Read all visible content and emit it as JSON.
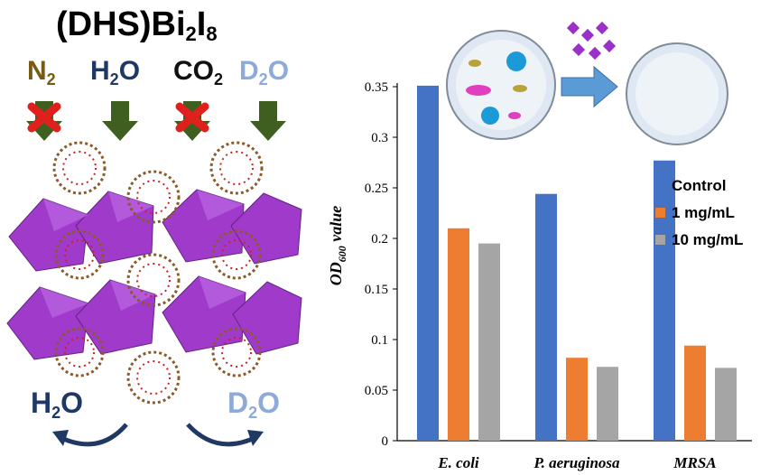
{
  "left_panel": {
    "title": {
      "prefix": "(DHS)Bi",
      "sub1": "2",
      "mid": "I",
      "sub2": "8"
    },
    "gases": [
      {
        "base": "N",
        "sub": "2",
        "color": "#7a5a12",
        "blocked": true
      },
      {
        "base": "H",
        "sub": "2",
        "tail": "O",
        "color": "#1f3864",
        "blocked": false
      },
      {
        "base": "CO",
        "sub": "2",
        "color": "#111111",
        "blocked": true
      },
      {
        "base": "D",
        "sub": "2",
        "tail": "O",
        "color": "#8eaadb",
        "blocked": false
      }
    ],
    "exchange": {
      "left": {
        "base": "H",
        "sub": "2",
        "tail": "O",
        "color": "#1f3864"
      },
      "right": {
        "base": "D",
        "sub": "2",
        "tail": "O",
        "color": "#8eaadb"
      }
    },
    "colors": {
      "octahedron": "#9b30c8",
      "arrow_green": "#3e5f1f",
      "cross_red": "#e0201c",
      "ring": "#8b5a2b"
    }
  },
  "chart_data": {
    "type": "bar",
    "categories": [
      "E. coli",
      "P. aeruginosa",
      "MRSA"
    ],
    "series": [
      {
        "name": "Control",
        "values": [
          0.351,
          0.244,
          0.277
        ],
        "color": "#4472c4"
      },
      {
        "name": "1 mg/mL",
        "values": [
          0.21,
          0.082,
          0.094
        ],
        "color": "#ed7d31"
      },
      {
        "name": "10 mg/mL",
        "values": [
          0.195,
          0.073,
          0.072
        ],
        "color": "#a5a5a5"
      }
    ],
    "ylabel": {
      "base": "OD",
      "sub": "600",
      "tail": " value"
    },
    "ylim": [
      0,
      0.35
    ],
    "yticks": [
      "0",
      "0.05",
      "0.1",
      "0.15",
      "0.2",
      "0.25",
      "0.3",
      "0.35"
    ],
    "ytick_values": [
      0,
      0.05,
      0.1,
      0.15,
      0.2,
      0.25,
      0.3,
      0.35
    ],
    "legend_position": "right",
    "grid": false
  }
}
